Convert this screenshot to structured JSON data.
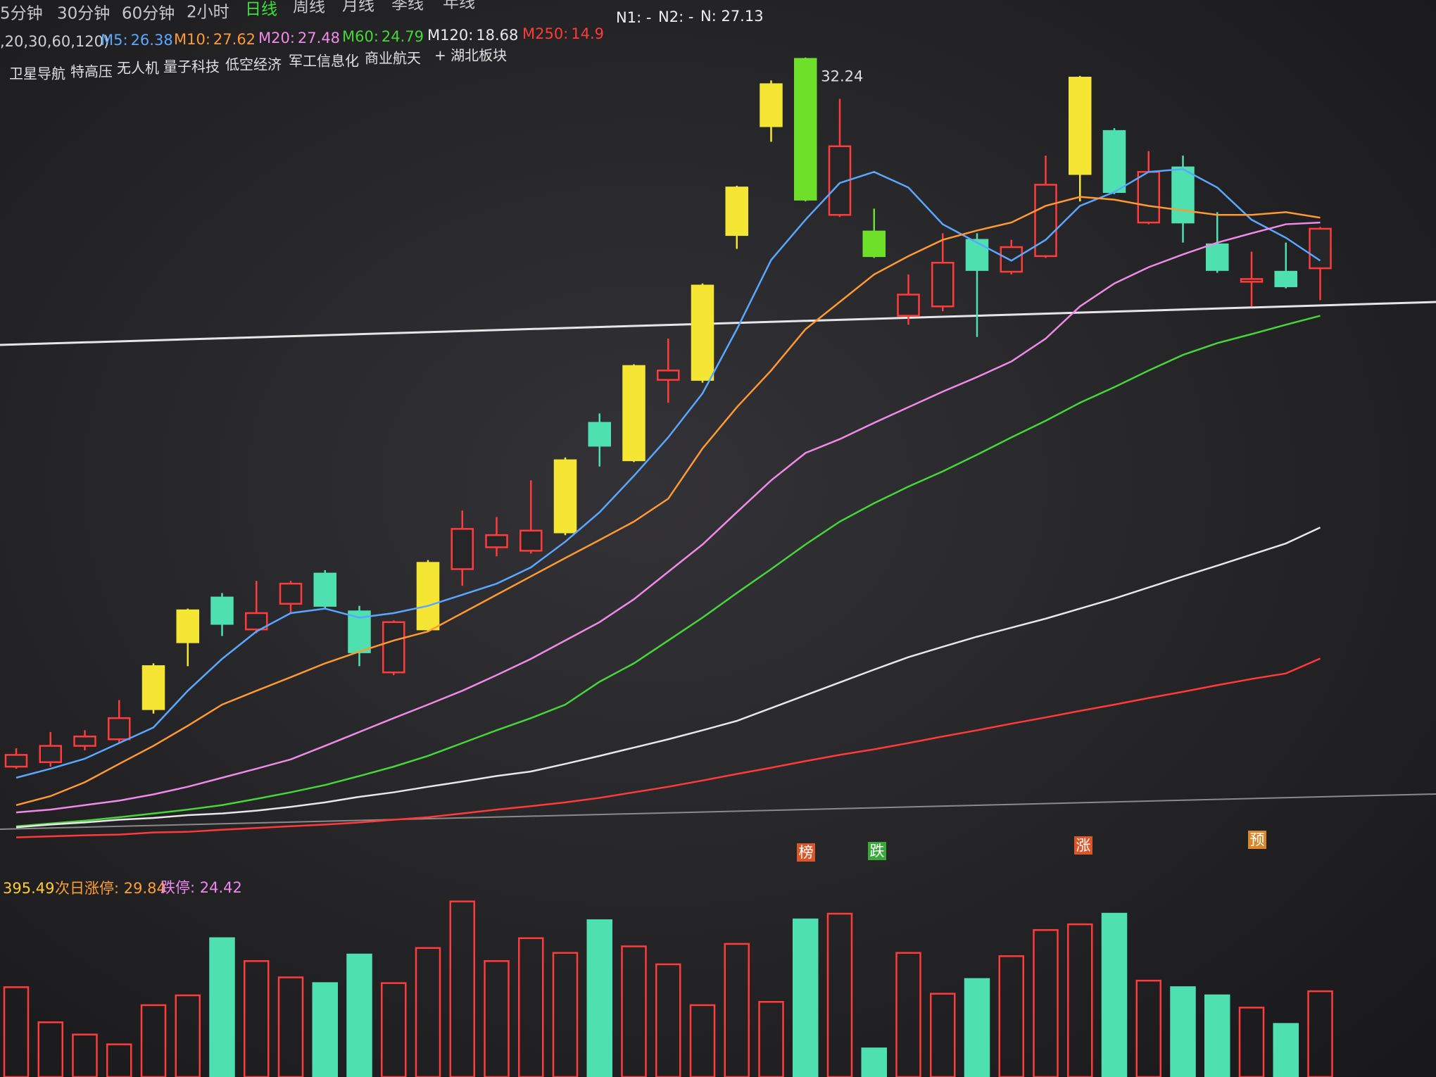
{
  "toolbar": [
    "5分钟",
    "30分钟",
    "60分钟",
    "2小时",
    "日线",
    "周线",
    "月线",
    "季线",
    "年线"
  ],
  "ma_params": ",20,30,60,120)",
  "indicators": [
    "N1: -",
    "N2: -",
    "N: 27.13"
  ],
  "tags": [
    "卫星导航",
    "特高压",
    "无人机",
    "量子科技",
    "低空经济",
    "军工信息化",
    "商业航天",
    "+ 湖北板块"
  ],
  "markers": [
    "榜",
    "跌",
    "涨",
    "预"
  ],
  "volume_legend": [
    "395.49",
    "次日涨停: 29.84",
    "跌停: 24.42"
  ],
  "chart_data": [
    {
      "type": "candlestick",
      "ylim": [
        9.0,
        33.9
      ],
      "hollow_color": "#ff3b3b",
      "open": [
        11.78,
        11.91,
        12.38,
        12.57,
        13.44,
        15.37,
        16.66,
        15.74,
        16.48,
        17.35,
        16.26,
        14.5,
        15.74,
        17.48,
        18.11,
        18.01,
        18.54,
        21.7,
        20.62,
        22.94,
        22.94,
        27.12,
        30.26,
        32.2,
        27.7,
        27.22,
        24.79,
        25.06,
        26.98,
        26.06,
        26.51,
        28.88,
        30.12,
        27.48,
        29.07,
        26.85,
        25.77,
        26.06,
        26.16
      ],
      "high": [
        12.31,
        12.78,
        12.83,
        13.7,
        14.76,
        16.34,
        16.79,
        17.14,
        17.14,
        17.45,
        16.42,
        16.0,
        17.74,
        19.17,
        18.98,
        20.04,
        20.7,
        21.97,
        23.39,
        24.13,
        25.72,
        28.54,
        31.58,
        32.24,
        31.05,
        27.88,
        25.98,
        27.17,
        27.17,
        26.98,
        29.41,
        31.71,
        30.2,
        29.54,
        29.41,
        27.78,
        26.64,
        26.9,
        27.35
      ],
      "low": [
        11.72,
        11.78,
        12.25,
        12.46,
        13.31,
        14.68,
        15.55,
        15.63,
        16.21,
        16.34,
        14.68,
        14.42,
        15.68,
        17.0,
        17.85,
        17.93,
        18.46,
        20.44,
        20.57,
        22.28,
        22.86,
        26.72,
        29.81,
        28.09,
        27.64,
        26.46,
        24.53,
        24.92,
        24.18,
        25.98,
        26.46,
        28.09,
        28.3,
        27.43,
        26.9,
        26.03,
        25.06,
        25.58,
        25.24
      ],
      "close": [
        12.12,
        12.38,
        12.65,
        13.18,
        14.68,
        16.29,
        15.9,
        16.21,
        17.06,
        16.42,
        15.08,
        15.95,
        17.66,
        18.64,
        18.46,
        18.59,
        20.62,
        21.04,
        23.34,
        23.21,
        25.66,
        28.49,
        31.47,
        28.14,
        29.68,
        26.51,
        25.4,
        26.32,
        26.11,
        26.77,
        28.57,
        31.66,
        28.36,
        28.94,
        27.48,
        26.11,
        25.85,
        25.64,
        27.3
      ],
      "colors": [
        "#ff3b3b",
        "#ff3b3b",
        "#ff3b3b",
        "#ff3b3b",
        "#f5e634",
        "#f5e634",
        "#4fe0b0",
        "#ff3b3b",
        "#ff3b3b",
        "#4fe0b0",
        "#4fe0b0",
        "#ff3b3b",
        "#f5e634",
        "#ff3b3b",
        "#ff3b3b",
        "#ff3b3b",
        "#f5e634",
        "#4fe0b0",
        "#f5e634",
        "#ff3b3b",
        "#f5e634",
        "#f5e634",
        "#f5e634",
        "#6ee02a",
        "#ff3b3b",
        "#6ee02a",
        "#ff3b3b",
        "#ff3b3b",
        "#4fe0b0",
        "#ff3b3b",
        "#ff3b3b",
        "#f5e634",
        "#4fe0b0",
        "#ff3b3b",
        "#4fe0b0",
        "#4fe0b0",
        "#ff3b3b",
        "#4fe0b0",
        "#ff3b3b"
      ],
      "series": [
        {
          "name": "M5:",
          "color": "#5aa7ff",
          "values": [
            11.46,
            11.72,
            12.01,
            12.46,
            12.91,
            13.97,
            14.89,
            15.68,
            16.21,
            16.34,
            16.08,
            16.21,
            16.42,
            16.74,
            17.06,
            17.53,
            18.27,
            19.12,
            20.17,
            21.28,
            22.55,
            24.4,
            26.4,
            27.56,
            28.62,
            28.94,
            28.49,
            27.43,
            26.9,
            26.38,
            26.98,
            27.96,
            28.36,
            28.94,
            29.02,
            28.49,
            27.56,
            27.04,
            26.38
          ]
        },
        {
          "name": "M10:",
          "color": "#ff9933",
          "values": [
            10.67,
            10.93,
            11.33,
            11.86,
            12.38,
            12.96,
            13.57,
            13.97,
            14.36,
            14.76,
            15.1,
            15.42,
            15.68,
            16.21,
            16.74,
            17.27,
            17.8,
            18.32,
            18.85,
            19.51,
            20.96,
            22.15,
            23.21,
            24.4,
            25.19,
            25.98,
            26.51,
            26.98,
            27.25,
            27.48,
            27.96,
            28.22,
            28.14,
            27.96,
            27.83,
            27.7,
            27.7,
            27.78,
            27.62
          ]
        },
        {
          "name": "M20:",
          "color": "#f08ae8",
          "values": [
            10.46,
            10.54,
            10.67,
            10.8,
            10.98,
            11.2,
            11.46,
            11.72,
            11.99,
            12.38,
            12.78,
            13.18,
            13.57,
            13.97,
            14.42,
            14.89,
            15.42,
            15.95,
            16.61,
            17.4,
            18.19,
            19.12,
            20.04,
            20.83,
            21.23,
            21.7,
            22.15,
            22.6,
            23.02,
            23.47,
            24.13,
            25.06,
            25.72,
            26.19,
            26.56,
            26.9,
            27.17,
            27.43,
            27.48
          ]
        },
        {
          "name": "M60:",
          "color": "#46d63a",
          "values": [
            10.06,
            10.14,
            10.22,
            10.32,
            10.43,
            10.54,
            10.67,
            10.85,
            11.04,
            11.25,
            11.51,
            11.78,
            12.09,
            12.46,
            12.83,
            13.18,
            13.57,
            14.23,
            14.76,
            15.42,
            16.08,
            16.79,
            17.48,
            18.19,
            18.85,
            19.38,
            19.86,
            20.3,
            20.78,
            21.28,
            21.76,
            22.28,
            22.73,
            23.21,
            23.66,
            24.0,
            24.26,
            24.53,
            24.79
          ]
        },
        {
          "name": "M120:",
          "color": "#e8e8e8",
          "values": [
            10.03,
            10.11,
            10.17,
            10.25,
            10.3,
            10.38,
            10.43,
            10.51,
            10.62,
            10.75,
            10.91,
            11.04,
            11.2,
            11.35,
            11.51,
            11.64,
            11.86,
            12.09,
            12.33,
            12.57,
            12.83,
            13.1,
            13.47,
            13.84,
            14.21,
            14.58,
            14.94,
            15.24,
            15.53,
            15.79,
            16.05,
            16.34,
            16.63,
            16.95,
            17.27,
            17.58,
            17.9,
            18.22,
            18.68
          ]
        },
        {
          "name": "M250:",
          "color": "#ff3a3a",
          "values": [
            9.74,
            9.77,
            9.8,
            9.82,
            9.88,
            9.9,
            9.96,
            10.01,
            10.06,
            10.11,
            10.17,
            10.25,
            10.32,
            10.43,
            10.54,
            10.64,
            10.75,
            10.88,
            11.04,
            11.2,
            11.38,
            11.57,
            11.75,
            11.94,
            12.12,
            12.28,
            12.46,
            12.65,
            12.83,
            13.02,
            13.2,
            13.39,
            13.57,
            13.76,
            13.94,
            14.13,
            14.31,
            14.47,
            14.9
          ]
        }
      ]
    },
    {
      "type": "bar",
      "ylim": [
        0,
        900
      ],
      "values": [
        440,
        268,
        208,
        160,
        352,
        400,
        680,
        568,
        488,
        460,
        600,
        460,
        632,
        860,
        568,
        680,
        608,
        768,
        640,
        552,
        352,
        652,
        368,
        772,
        800,
        140,
        608,
        408,
        480,
        592,
        720,
        748,
        800,
        472,
        440,
        400,
        340,
        260,
        420
      ],
      "colors": [
        "#ff3b3b",
        "#ff3b3b",
        "#ff3b3b",
        "#ff3b3b",
        "#ff3b3b",
        "#ff3b3b",
        "#4fe0b0",
        "#ff3b3b",
        "#ff3b3b",
        "#4fe0b0",
        "#4fe0b0",
        "#ff3b3b",
        "#ff3b3b",
        "#ff3b3b",
        "#ff3b3b",
        "#ff3b3b",
        "#ff3b3b",
        "#4fe0b0",
        "#ff3b3b",
        "#ff3b3b",
        "#ff3b3b",
        "#ff3b3b",
        "#ff3b3b",
        "#4fe0b0",
        "#ff3b3b",
        "#4fe0b0",
        "#ff3b3b",
        "#ff3b3b",
        "#4fe0b0",
        "#ff3b3b",
        "#ff3b3b",
        "#ff3b3b",
        "#4fe0b0",
        "#ff3b3b",
        "#4fe0b0",
        "#4fe0b0",
        "#ff3b3b",
        "#4fe0b0",
        "#ff3b3b"
      ],
      "hollow_color": "#ff3b3b"
    }
  ]
}
